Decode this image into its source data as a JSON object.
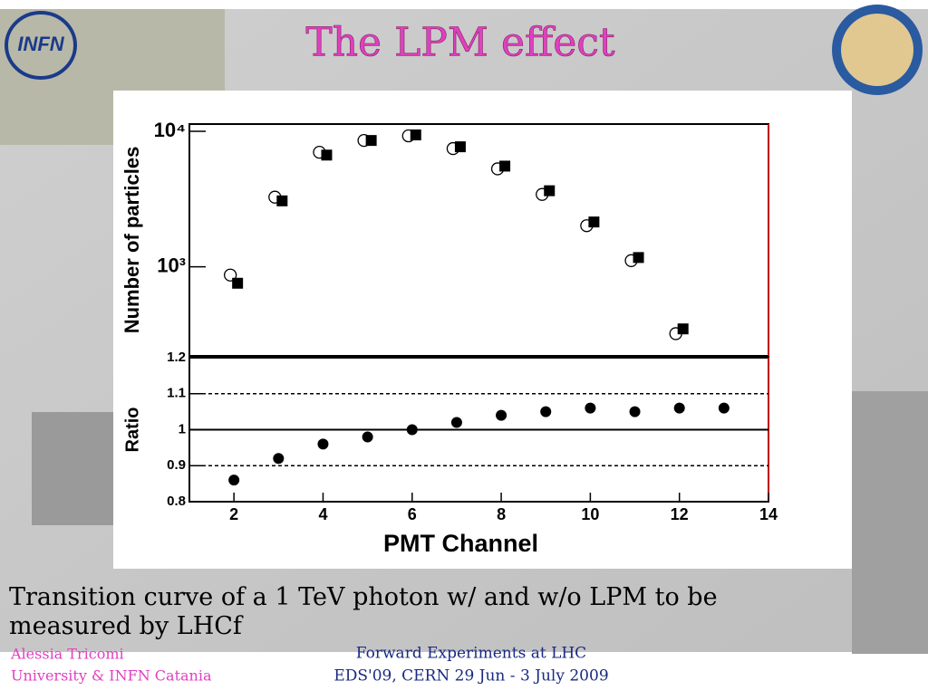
{
  "logo": "INFN",
  "title": "The LPM effect",
  "caption": "Transition curve of a 1 TeV photon w/ and w/o LPM to be measured by LHCf",
  "author": "Alessia Tricomi",
  "affiliation": "University & INFN Catania",
  "conference": "Forward Experiments at LHC",
  "event": "EDS'09, CERN 29 Jun - 3 July 2009",
  "chart_data": [
    {
      "type": "scatter",
      "ylabel": "Number of particles",
      "ylog": true,
      "xlim": [
        1,
        14
      ],
      "ylim": [
        220,
        11300
      ],
      "yticks": [
        {
          "value": 1000,
          "label": "10³"
        },
        {
          "value": 10000,
          "label": "10⁴"
        }
      ],
      "series": [
        {
          "marker": "circle-open",
          "color": "#000000",
          "x": [
            2,
            3,
            4,
            5,
            6,
            7,
            8,
            9,
            10,
            11,
            12
          ],
          "values": [
            869,
            3265,
            7000,
            8550,
            9250,
            7450,
            5280,
            3420,
            2010,
            1110,
            321
          ]
        },
        {
          "marker": "square",
          "color": "#000000",
          "x": [
            2,
            3,
            4,
            5,
            6,
            7,
            8,
            9,
            10,
            11,
            12
          ],
          "values": [
            756,
            3065,
            6670,
            8550,
            9400,
            7680,
            5530,
            3640,
            2140,
            1170,
            348
          ]
        }
      ]
    },
    {
      "type": "scatter",
      "ylabel": "Ratio",
      "xlabel": "PMT Channel",
      "xlim": [
        1,
        14
      ],
      "ylim": [
        0.8,
        1.2
      ],
      "xticks": [
        2,
        4,
        6,
        8,
        10,
        12,
        14
      ],
      "yticks": [
        0.8,
        0.9,
        1,
        1.1,
        1.2
      ],
      "hlines": [
        {
          "value": 0.9,
          "style": "dashed"
        },
        {
          "value": 1,
          "style": "solid"
        },
        {
          "value": 1.1,
          "style": "dashed"
        }
      ],
      "series": [
        {
          "marker": "circle",
          "color": "#000000",
          "x": [
            2,
            3,
            4,
            5,
            6,
            7,
            8,
            9,
            10,
            11,
            12,
            13
          ],
          "values": [
            0.86,
            0.92,
            0.96,
            0.98,
            1.0,
            1.02,
            1.04,
            1.05,
            1.06,
            1.05,
            1.06,
            1.06
          ]
        }
      ]
    }
  ]
}
